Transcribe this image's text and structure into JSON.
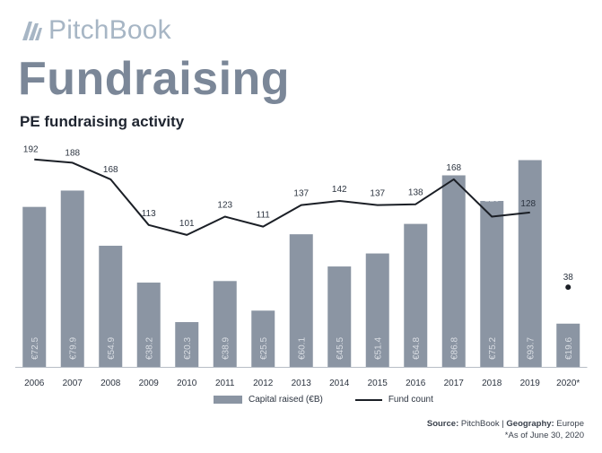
{
  "brand": {
    "name": "PitchBook",
    "icon": "pitchbook-logo-icon",
    "color": "#a7b6c5"
  },
  "page": {
    "title": "Fundraising"
  },
  "colors": {
    "bar": "#8b95a3",
    "line": "#1b1f26",
    "bar_label": "#d9dde3",
    "text": "#2c3440"
  },
  "chart_data": {
    "type": "bar",
    "title": "PE fundraising activity",
    "xlabel": "",
    "ylabel": "",
    "categories": [
      "2006",
      "2007",
      "2008",
      "2009",
      "2010",
      "2011",
      "2012",
      "2013",
      "2014",
      "2015",
      "2016",
      "2017",
      "2018",
      "2019",
      "2020*"
    ],
    "series": [
      {
        "name": "Capital raised (€B)",
        "type": "bar",
        "values": [
          72.5,
          79.9,
          54.9,
          38.2,
          20.3,
          38.9,
          25.5,
          60.1,
          45.5,
          51.4,
          64.8,
          86.8,
          75.2,
          93.7,
          19.6
        ],
        "labels": [
          "€72.5",
          "€79.9",
          "€54.9",
          "€38.2",
          "€20.3",
          "€38.9",
          "€25.5",
          "€60.1",
          "€45.5",
          "€51.4",
          "€64.8",
          "€86.8",
          "€75.2",
          "€93.7",
          "€19.6"
        ]
      },
      {
        "name": "Fund count",
        "type": "line",
        "values": [
          192,
          188,
          168,
          113,
          101,
          123,
          111,
          137,
          142,
          137,
          138,
          168,
          123,
          128,
          38
        ]
      }
    ],
    "legend_position": "bottom",
    "grid": false
  },
  "source": {
    "label": "Source:",
    "name": "PitchBook",
    "separator": "|",
    "geo_label": "Geography:",
    "geo": "Europe",
    "note": "*As of June 30, 2020"
  }
}
